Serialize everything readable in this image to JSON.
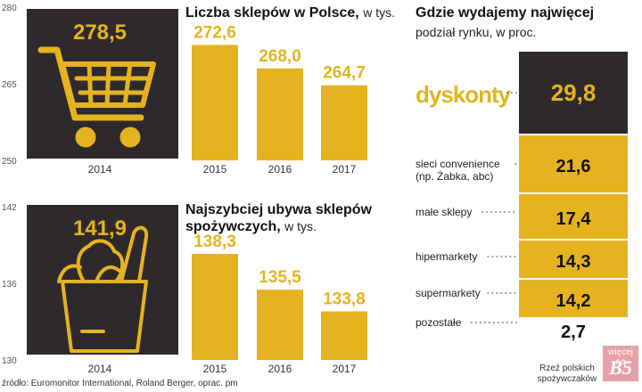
{
  "colors": {
    "gold": "#e5b31f",
    "dark": "#2e2a2b",
    "axis": "#555555"
  },
  "chart_data": [
    {
      "type": "bar",
      "title": "Liczba sklepów w Polsce,",
      "subtitle": "w tys.",
      "categories": [
        "2014",
        "2015",
        "2016",
        "2017"
      ],
      "values": [
        278.5,
        272.6,
        268.0,
        264.7
      ],
      "value_labels": [
        "278,5",
        "272,6",
        "268,0",
        "264,7"
      ],
      "yticks": [
        "280",
        "265",
        "250"
      ],
      "ylim": [
        250,
        280
      ],
      "highlight_icon": "shopping-cart-icon"
    },
    {
      "type": "bar",
      "title": "Najszybciej ubywa sklepów spożywczych,",
      "subtitle": "w tys.",
      "categories": [
        "2014",
        "2015",
        "2016",
        "2017"
      ],
      "values": [
        141.9,
        138.3,
        135.5,
        133.8
      ],
      "value_labels": [
        "141,9",
        "138,3",
        "135,5",
        "133,8"
      ],
      "yticks": [
        "142",
        "136",
        "130"
      ],
      "ylim": [
        130,
        142
      ],
      "highlight_icon": "grocery-bag-icon"
    },
    {
      "type": "bar",
      "title": "Gdzie wydajemy najwięcej",
      "subtitle": "podział rynku, w proc.",
      "categories": [
        "dyskonty",
        "sieci convenience (np. Żabka, abc)",
        "małe sklepy",
        "hipermarkety",
        "supermarkety",
        "pozostałe"
      ],
      "category_lines": [
        [
          "dyskonty"
        ],
        [
          "sieci convenience",
          "(np. Żabka, abc)"
        ],
        [
          "małe sklepy"
        ],
        [
          "hipermarkety"
        ],
        [
          "supermarkety"
        ],
        [
          "pozostałe"
        ]
      ],
      "values": [
        29.8,
        21.6,
        17.4,
        14.3,
        14.2,
        2.7
      ],
      "value_labels": [
        "29,8",
        "21,6",
        "17,4",
        "14,3",
        "14,2",
        "2,7"
      ]
    }
  ],
  "source": "źródło: Euromonitor International, Roland Berger, oprac. pm",
  "credit": {
    "line1": "Rzeź polskich",
    "line2": "spożywczaków"
  },
  "badge": {
    "top": "więcej na",
    "label": "B5"
  }
}
